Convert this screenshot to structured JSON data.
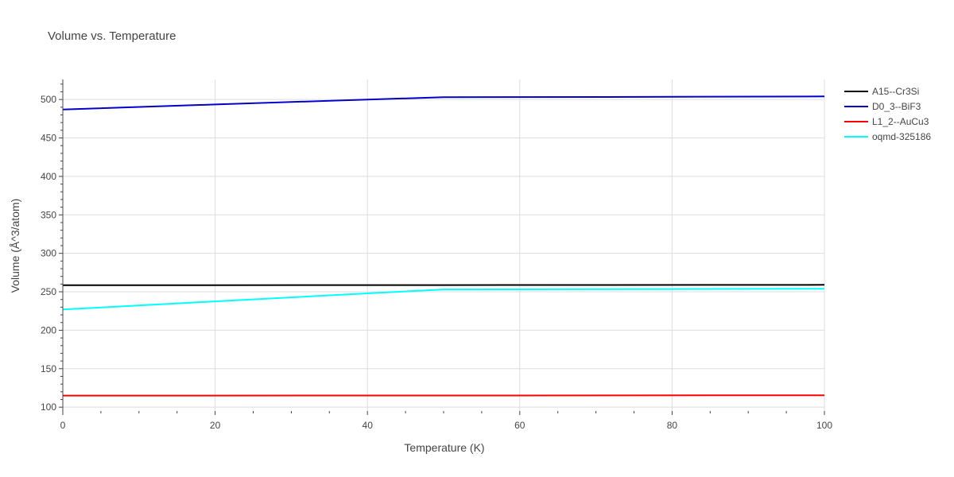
{
  "chart_data": {
    "type": "line",
    "title": "Volume vs. Temperature",
    "xlabel": "Temperature (K)",
    "ylabel": "Volume (Å^3/atom)",
    "xlim": [
      0,
      100
    ],
    "ylim": [
      95,
      526
    ],
    "xticks": [
      0,
      20,
      40,
      60,
      80,
      100
    ],
    "yticks": [
      100,
      150,
      200,
      250,
      300,
      350,
      400,
      450,
      500
    ],
    "grid": true,
    "legend_position": "top-right",
    "series": [
      {
        "name": "A15--Cr3Si",
        "color": "#000000",
        "x": [
          0,
          50,
          100
        ],
        "y": [
          258.5,
          258.7,
          259.0
        ]
      },
      {
        "name": "D0_3--BiF3",
        "color": "#0000cc",
        "x": [
          0,
          20,
          40,
          50,
          80,
          100
        ],
        "y": [
          487,
          493.5,
          500,
          503,
          503.5,
          504
        ]
      },
      {
        "name": "L1_2--AuCu3",
        "color": "#ff0000",
        "x": [
          0,
          50,
          100
        ],
        "y": [
          115,
          115.2,
          115.5
        ]
      },
      {
        "name": "oqmd-325186",
        "color": "#00ffff",
        "x": [
          0,
          20,
          40,
          50,
          80,
          100
        ],
        "y": [
          227,
          237.5,
          248,
          253,
          253.5,
          254
        ]
      }
    ]
  }
}
